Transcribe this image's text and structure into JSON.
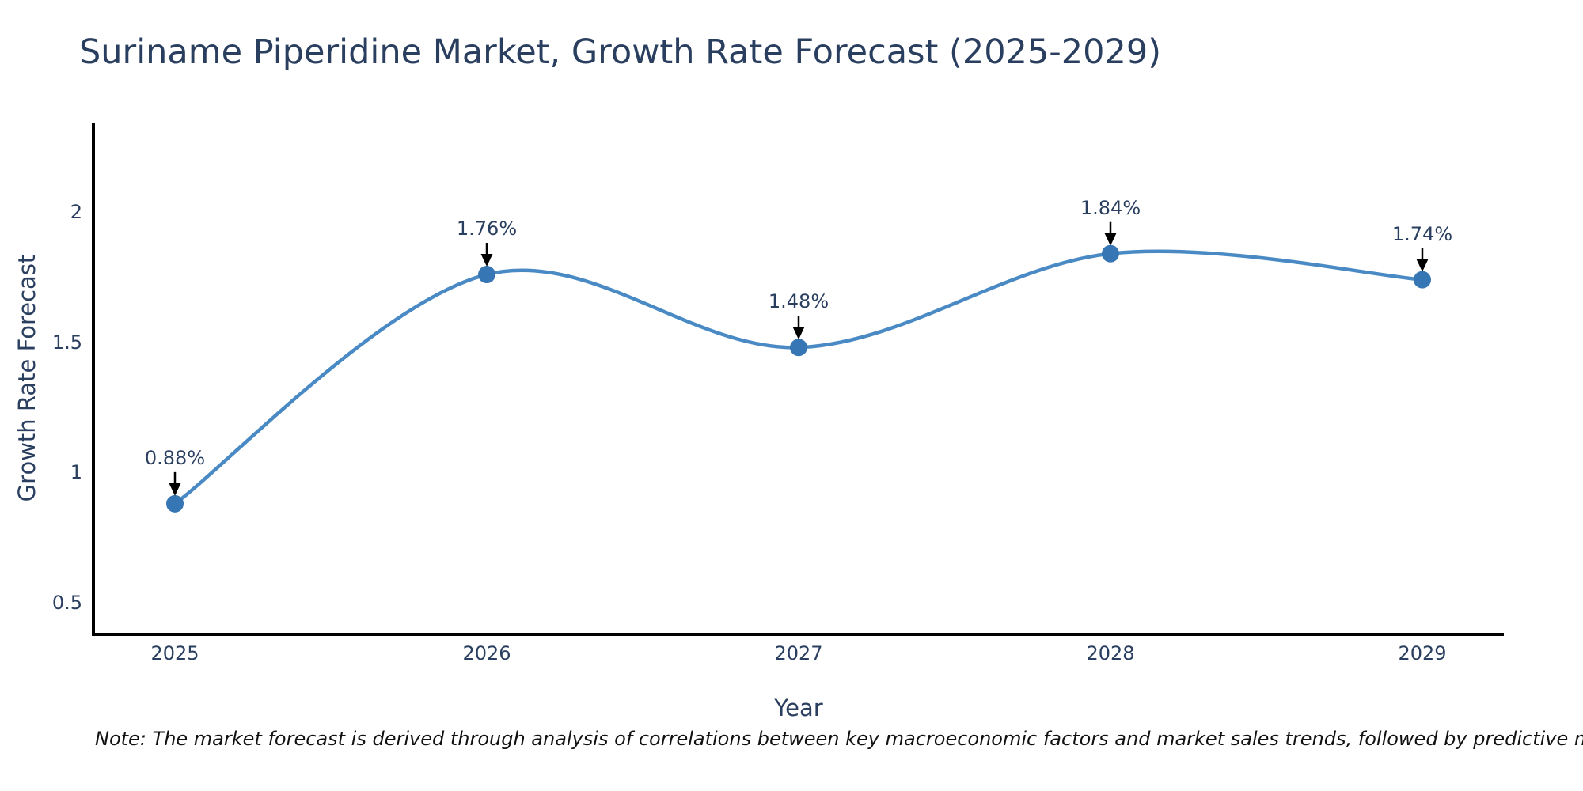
{
  "chart": {
    "title": "Suriname Piperidine Market, Growth Rate Forecast (2025-2029)",
    "note": "Note: The market forecast is derived through analysis of correlations between key macroeconomic factors and market sales trends, followed by predictive modeling to project future sales"
  },
  "chart_data": {
    "type": "line",
    "title": "Suriname Piperidine Market, Growth Rate Forecast (2025-2029)",
    "xlabel": "Year",
    "ylabel": "Growth Rate Forecast",
    "categories": [
      "2025",
      "2026",
      "2027",
      "2028",
      "2029"
    ],
    "values": [
      0.88,
      1.76,
      1.48,
      1.84,
      1.74
    ],
    "point_labels": [
      "0.88%",
      "1.76%",
      "1.48%",
      "1.84%",
      "1.74%"
    ],
    "yticks": [
      0.5,
      1,
      1.5,
      2
    ],
    "ylim": [
      0.38,
      2.34
    ],
    "grid": false,
    "legend": false,
    "line_shape": "spline",
    "line_color": "#4a8ac4",
    "marker_color": "#3776b4",
    "axis_color": "#000000",
    "text_color": "#2a3f5f",
    "annotation_arrow_color": "#000000"
  }
}
